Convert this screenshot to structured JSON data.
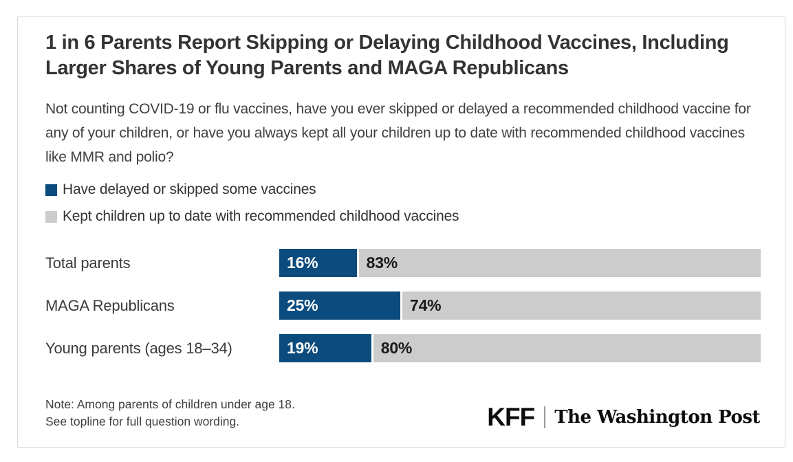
{
  "header": {
    "title": "1 in 6 Parents Report Skipping or Delaying Childhood Vaccines, Including Larger Shares of Young Parents and MAGA Republicans",
    "question": "Not counting COVID-19 or flu vaccines, have you ever skipped or delayed a recommended childhood vaccine for any of your children, or have you always kept all your children up to date with recommended childhood vaccines like MMR and polio?"
  },
  "colors": {
    "delayed_blue": "#0B4B7D",
    "up_to_date_gray": "#CCCCCC",
    "title_text": "#333333",
    "card_border": "#D9D9D9"
  },
  "legend": {
    "items": [
      {
        "label": "Have delayed or skipped some vaccines",
        "color": "#0B4B7D"
      },
      {
        "label": "Kept children up to date with recommended childhood vaccines",
        "color": "#CCCCCC"
      }
    ]
  },
  "chart_data": {
    "type": "bar",
    "orientation": "horizontal",
    "stacked": true,
    "categories": [
      "Total parents",
      "MAGA Republicans",
      "Young parents (ages 18–34)"
    ],
    "series": [
      {
        "name": "Have delayed or skipped some vaccines",
        "color": "#0B4B7D",
        "values": [
          16,
          25,
          19
        ]
      },
      {
        "name": "Kept children up to date with recommended childhood vaccines",
        "color": "#CCCCCC",
        "values": [
          83,
          74,
          80
        ]
      }
    ],
    "value_suffix": "%",
    "xlim": [
      0,
      100
    ],
    "grid": false,
    "value_labels": "inside-left",
    "legend_position": "top-left"
  },
  "footer": {
    "note_line1": "Note: Among parents of children under age 18.",
    "note_line2": "See topline for full question wording.",
    "logo_kff": "KFF",
    "logo_wapo": "The Washington Post"
  }
}
